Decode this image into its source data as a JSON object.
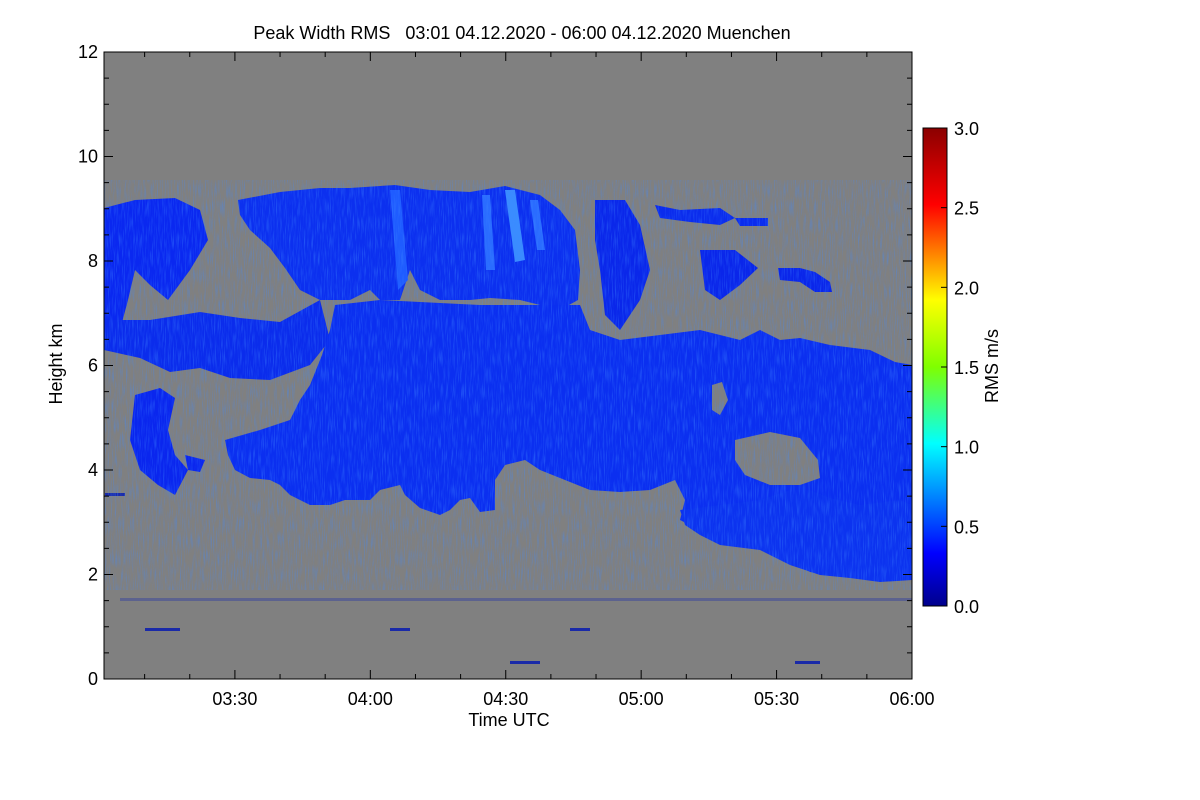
{
  "chart_data": {
    "type": "heatmap",
    "title": "Peak Width RMS   03:01 04.12.2020 - 06:00 04.12.2020 Muenchen",
    "xlabel": "Time UTC",
    "ylabel": "Height km",
    "xlim": [
      "03:01",
      "06:00"
    ],
    "ylim": [
      0,
      12
    ],
    "x_tick_labels": [
      "03:30",
      "04:00",
      "04:30",
      "05:00",
      "05:30",
      "06:00"
    ],
    "y_tick_labels": [
      "0",
      "2",
      "4",
      "6",
      "8",
      "10",
      "12"
    ],
    "y_ticks": [
      0,
      2,
      4,
      6,
      8,
      10,
      12
    ],
    "background_color": "#808080",
    "colorbar": {
      "label": "RMS m/s",
      "range": [
        0.0,
        3.0
      ],
      "tick_labels": [
        "0.0",
        "0.5",
        "1.0",
        "1.5",
        "2.0",
        "2.5",
        "3.0"
      ],
      "tick_values": [
        0.0,
        0.5,
        1.0,
        1.5,
        2.0,
        2.5,
        3.0
      ],
      "colormap": "jet"
    },
    "dominant_value_range": [
      0.1,
      0.6
    ],
    "cloud_regions": [
      {
        "time": [
          "03:01",
          "03:23"
        ],
        "height": [
          6.2,
          9.1
        ]
      },
      {
        "time": [
          "03:08",
          "03:49"
        ],
        "height": [
          5.8,
          7.1
        ]
      },
      {
        "time": [
          "03:49",
          "04:47"
        ],
        "height": [
          7.0,
          9.4
        ]
      },
      {
        "time": [
          "03:25",
          "05:08"
        ],
        "height": [
          3.5,
          7.0
        ]
      },
      {
        "time": [
          "04:45",
          "06:00"
        ],
        "height": [
          1.9,
          6.6
        ]
      },
      {
        "time": [
          "05:10",
          "05:40"
        ],
        "height": [
          8.4,
          8.8
        ]
      }
    ]
  }
}
